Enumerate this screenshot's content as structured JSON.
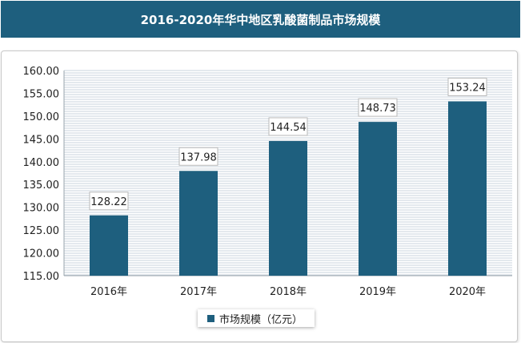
{
  "title": "2016-2020年华中地区乳酸菌制品市场规模",
  "colors": {
    "bar": "#1e5f7e",
    "title_bg": "#1e5f7e"
  },
  "chart_data": {
    "type": "bar",
    "categories": [
      "2016年",
      "2017年",
      "2018年",
      "2019年",
      "2020年"
    ],
    "series": [
      {
        "name": "市场规模（亿元）",
        "values": [
          128.22,
          137.98,
          144.54,
          148.73,
          153.24
        ]
      }
    ],
    "data_labels": [
      "128.22",
      "137.98",
      "144.54",
      "148.73",
      "153.24"
    ],
    "ylim": [
      115,
      160
    ],
    "yticks": [
      "115.00",
      "120.00",
      "125.00",
      "130.00",
      "135.00",
      "140.00",
      "145.00",
      "150.00",
      "155.00",
      "160.00"
    ],
    "grid": true,
    "legend_position": "bottom"
  }
}
